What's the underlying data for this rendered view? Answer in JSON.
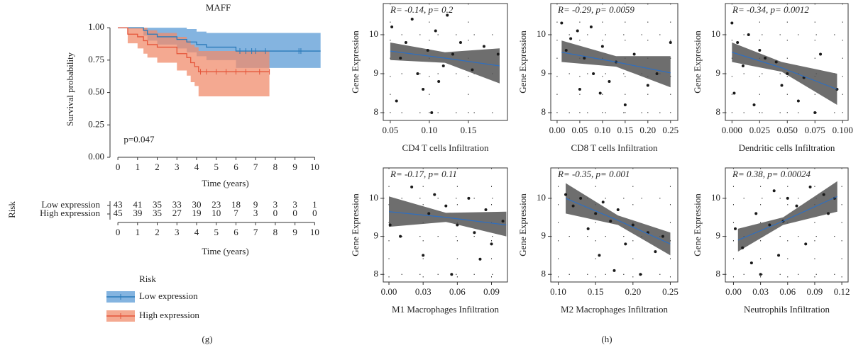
{
  "panel_labels": [
    "(g)",
    "(h)"
  ],
  "chart_data": [
    {
      "type": "survival",
      "title": "MAFF",
      "xlabel": "Time (years)",
      "ylabel": "Survival probability",
      "annotation": "p=0.047",
      "xlim": [
        -0.4,
        10.6
      ],
      "xticks": [
        0,
        1,
        2,
        3,
        4,
        5,
        6,
        7,
        8,
        9,
        10
      ],
      "ylim": [
        0,
        1.05
      ],
      "yticks": [
        {
          "value": 0,
          "label": "0.00"
        },
        {
          "value": 0.25,
          "label": "0.25"
        },
        {
          "value": 0.5,
          "label": "0.50"
        },
        {
          "value": 0.75,
          "label": "0.75"
        },
        {
          "value": 1,
          "label": "1.00"
        }
      ],
      "series": [
        {
          "name": "Low expression",
          "color": "#2a7ab9",
          "fill": "#5b9bd5",
          "x": [
            0,
            1.3,
            1.5,
            2.0,
            3.0,
            3.5,
            4.0,
            4.5,
            6.0,
            10.3
          ],
          "values": [
            1,
            0.98,
            0.95,
            0.93,
            0.91,
            0.89,
            0.87,
            0.85,
            0.82,
            0.82
          ],
          "ci_upper": [
            1,
            1,
            1,
            1,
            1,
            0.99,
            0.97,
            0.96,
            0.96,
            0.96
          ],
          "ci_lower": [
            1,
            0.94,
            0.9,
            0.87,
            0.84,
            0.81,
            0.78,
            0.75,
            0.69,
            0.69
          ],
          "censored": [
            6.2,
            6.5,
            6.8,
            7.0,
            7.5,
            9.2,
            9.3
          ]
        },
        {
          "name": "High expression",
          "color": "#e5553a",
          "fill": "#f08c6c",
          "x": [
            0,
            0.5,
            1.0,
            1.3,
            1.5,
            2.0,
            3.0,
            3.5,
            3.7,
            3.9,
            4.1,
            7.7
          ],
          "values": [
            1,
            0.95,
            0.93,
            0.9,
            0.87,
            0.85,
            0.8,
            0.77,
            0.73,
            0.7,
            0.66,
            0.66
          ],
          "ci_upper": [
            1,
            1,
            1,
            1,
            0.98,
            0.96,
            0.93,
            0.9,
            0.87,
            0.85,
            0.82,
            0.82
          ],
          "ci_lower": [
            1,
            0.88,
            0.84,
            0.8,
            0.77,
            0.73,
            0.67,
            0.63,
            0.58,
            0.55,
            0.47,
            0.47
          ],
          "censored": [
            4.2,
            4.5,
            5.0,
            5.5,
            6.0,
            6.5,
            7.2,
            7.7
          ]
        }
      ],
      "risk_table": {
        "title": "Risk",
        "xlabel": "Time (years)",
        "rows": [
          [
            43,
            41,
            35,
            33,
            30,
            23,
            18,
            9,
            3,
            3,
            1
          ],
          [
            45,
            39,
            35,
            27,
            19,
            10,
            7,
            3,
            0,
            0,
            0
          ]
        ]
      },
      "legend": {
        "title": "Risk",
        "position": "bottom"
      }
    },
    {
      "type": "scatter",
      "title": "R= -0.14, p= 0.2",
      "xlabel": "CD4 T cells Infiltration",
      "ylabel": "Gene Expression",
      "xlim": [
        0.041,
        0.2
      ],
      "xticks": [
        0.05,
        {
          "value": 0.1,
          "label": "0.10"
        },
        0.15
      ],
      "ylim": [
        7.8,
        10.8
      ],
      "yticks": [
        8,
        9,
        10
      ],
      "grid": true,
      "color": "#1a1a1a",
      "fit_color": "#2f6fc0",
      "band_color": "#555555",
      "x": [
        0.052,
        0.058,
        0.063,
        0.07,
        0.078,
        0.085,
        0.092,
        0.098,
        0.103,
        0.108,
        0.112,
        0.118,
        0.123,
        0.13,
        0.14,
        0.155,
        0.17,
        0.188
      ],
      "values": [
        10.2,
        8.3,
        9.4,
        9.8,
        10.4,
        9.0,
        8.6,
        9.6,
        8.0,
        10.1,
        8.8,
        9.2,
        10.5,
        9.5,
        9.8,
        9.1,
        9.7,
        9.5
      ],
      "fit": {
        "x": [
          0.05,
          0.12,
          0.19
        ],
        "values": [
          9.58,
          9.4,
          9.2
        ],
        "lower": [
          9.35,
          9.28,
          8.75
        ],
        "upper": [
          9.8,
          9.55,
          9.65
        ]
      }
    },
    {
      "type": "scatter",
      "title": "R= -0.29, p= 0.0059",
      "xlabel": "CD8 T cells Infiltration",
      "ylabel": "Gene Expression",
      "xlim": [
        -0.014,
        0.266
      ],
      "xticks": [
        {
          "value": 0,
          "label": "0.00"
        },
        0.05,
        {
          "value": 0.1,
          "label": "0.10"
        },
        0.15,
        {
          "value": 0.2,
          "label": "0.20"
        },
        0.25
      ],
      "ylim": [
        7.8,
        10.8
      ],
      "yticks": [
        8,
        9,
        10
      ],
      "grid": true,
      "color": "#1a1a1a",
      "fit_color": "#2f6fc0",
      "band_color": "#555555",
      "x": [
        0.01,
        0.02,
        0.03,
        0.045,
        0.05,
        0.06,
        0.075,
        0.08,
        0.095,
        0.1,
        0.115,
        0.13,
        0.15,
        0.17,
        0.2,
        0.22,
        0.25
      ],
      "values": [
        10.3,
        9.6,
        9.9,
        10.1,
        8.6,
        9.4,
        10.2,
        9.0,
        8.5,
        9.7,
        8.8,
        9.3,
        8.2,
        9.5,
        8.7,
        9.0,
        9.8
      ],
      "fit": {
        "x": [
          0.01,
          0.13,
          0.25
        ],
        "values": [
          9.55,
          9.3,
          9.02
        ],
        "lower": [
          9.3,
          9.18,
          8.65
        ],
        "upper": [
          9.85,
          9.45,
          9.45
        ]
      }
    },
    {
      "type": "scatter",
      "title": "R= -0.34, p= 0.0012",
      "xlabel": "Dendritic cells Infiltration",
      "ylabel": "Gene Expression",
      "xlim": [
        -0.006,
        0.105
      ],
      "xticks": [
        {
          "value": 0,
          "label": "0.000"
        },
        0.025,
        {
          "value": 0.05,
          "label": "0.050"
        },
        0.075,
        {
          "value": 0.1,
          "label": "0.100"
        }
      ],
      "ylim": [
        7.8,
        10.8
      ],
      "yticks": [
        8,
        9,
        10
      ],
      "grid": true,
      "color": "#1a1a1a",
      "fit_color": "#2f6fc0",
      "band_color": "#555555",
      "x": [
        0,
        0.002,
        0.005,
        0.01,
        0.015,
        0.02,
        0.025,
        0.03,
        0.04,
        0.045,
        0.05,
        0.06,
        0.065,
        0.075,
        0.08,
        0.095
      ],
      "values": [
        10.3,
        8.5,
        9.8,
        9.2,
        10.0,
        8.2,
        9.6,
        9.4,
        9.3,
        8.7,
        9.0,
        8.3,
        8.9,
        8.0,
        9.5,
        8.6
      ],
      "fit": {
        "x": [
          0,
          0.045,
          0.095
        ],
        "values": [
          9.55,
          9.15,
          8.6
        ],
        "lower": [
          9.3,
          9.05,
          8.2
        ],
        "upper": [
          9.8,
          9.3,
          9.0
        ]
      }
    },
    {
      "type": "scatter",
      "title": "R= -0.17, p= 0.11",
      "xlabel": "M1 Macrophages Infiltration",
      "ylabel": "Gene Expression",
      "xlim": [
        -0.005,
        0.104
      ],
      "xticks": [
        {
          "value": 0,
          "label": "0.00"
        },
        0.03,
        0.06,
        0.09
      ],
      "ylim": [
        7.8,
        10.8
      ],
      "yticks": [
        8,
        9,
        10
      ],
      "grid": true,
      "color": "#1a1a1a",
      "fit_color": "#2f6fc0",
      "band_color": "#555555",
      "x": [
        0.001,
        0.01,
        0.02,
        0.03,
        0.035,
        0.04,
        0.05,
        0.055,
        0.06,
        0.07,
        0.075,
        0.08,
        0.085,
        0.09,
        0.1
      ],
      "values": [
        9.3,
        9.0,
        10.3,
        8.5,
        9.6,
        10.1,
        9.8,
        8.0,
        9.3,
        10.0,
        9.1,
        8.4,
        9.7,
        8.8,
        9.4
      ],
      "fit": {
        "x": [
          0,
          0.05,
          0.103
        ],
        "values": [
          9.65,
          9.5,
          9.3
        ],
        "lower": [
          9.25,
          9.38,
          9.0
        ],
        "upper": [
          10.05,
          9.62,
          9.65
        ]
      }
    },
    {
      "type": "scatter",
      "title": "R= -0.35, p= 0.001",
      "xlabel": "M2 Macrophages Infiltration",
      "ylabel": "Gene Expression",
      "xlim": [
        0.09,
        0.26
      ],
      "xticks": [
        {
          "value": 0.1,
          "label": "0.10"
        },
        0.15,
        {
          "value": 0.2,
          "label": "0.20"
        },
        0.25
      ],
      "ylim": [
        7.8,
        10.8
      ],
      "yticks": [
        8,
        9,
        10
      ],
      "grid": true,
      "color": "#1a1a1a",
      "fit_color": "#2f6fc0",
      "band_color": "#555555",
      "x": [
        0.11,
        0.12,
        0.13,
        0.14,
        0.15,
        0.155,
        0.16,
        0.17,
        0.175,
        0.18,
        0.19,
        0.2,
        0.21,
        0.22,
        0.23,
        0.24
      ],
      "values": [
        10.1,
        9.8,
        10.0,
        9.2,
        9.6,
        8.5,
        9.9,
        9.4,
        8.1,
        9.7,
        8.8,
        9.3,
        8.0,
        9.1,
        8.6,
        9.0
      ],
      "fit": {
        "x": [
          0.11,
          0.18,
          0.25
        ],
        "values": [
          10.0,
          9.42,
          8.8
        ],
        "lower": [
          9.6,
          9.3,
          8.5
        ],
        "upper": [
          10.4,
          9.55,
          9.1
        ]
      }
    },
    {
      "type": "scatter",
      "title": "R= 0.38, p= 0.00024",
      "xlabel": "Neutrophils Infiltration",
      "ylabel": "Gene Expression",
      "xlim": [
        -0.009,
        0.127
      ],
      "xticks": [
        {
          "value": 0,
          "label": "0.00"
        },
        0.03,
        0.06,
        0.09,
        0.12
      ],
      "ylim": [
        7.8,
        10.8
      ],
      "yticks": [
        8,
        9,
        10
      ],
      "grid": true,
      "color": "#1a1a1a",
      "fit_color": "#2f6fc0",
      "band_color": "#555555",
      "x": [
        0.002,
        0.01,
        0.02,
        0.025,
        0.03,
        0.04,
        0.045,
        0.05,
        0.055,
        0.06,
        0.07,
        0.08,
        0.085,
        0.1,
        0.105,
        0.112
      ],
      "values": [
        9.2,
        8.7,
        8.3,
        9.6,
        8.0,
        9.3,
        10.2,
        8.5,
        9.4,
        10.0,
        9.8,
        8.8,
        10.3,
        10.1,
        9.6,
        10.0
      ],
      "fit": {
        "x": [
          0.005,
          0.055,
          0.115
        ],
        "values": [
          8.9,
          9.4,
          10.05
        ],
        "lower": [
          8.6,
          9.3,
          9.65
        ],
        "upper": [
          9.2,
          9.5,
          10.45
        ]
      }
    }
  ]
}
